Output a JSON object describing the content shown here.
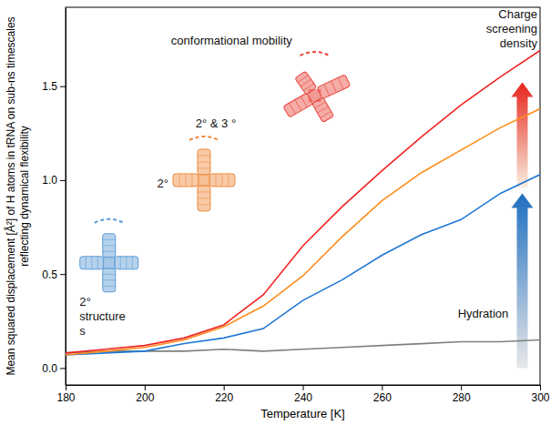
{
  "chart_data": {
    "type": "line",
    "x_label": "Temperature [K]",
    "y_label": "Mean squared displacement [Å²] of H atoms in tRNA on sub-ns timescales reflecting dynamical flexibility",
    "x": [
      180,
      190,
      200,
      210,
      220,
      230,
      240,
      250,
      260,
      270,
      280,
      290,
      300
    ],
    "series": [
      {
        "color": "#808080",
        "values": [
          0.08,
          0.09,
          0.09,
          0.09,
          0.1,
          0.09,
          0.1,
          0.11,
          0.12,
          0.13,
          0.14,
          0.14,
          0.15
        ]
      },
      {
        "color": "#1f77d4",
        "values": [
          0.07,
          0.08,
          0.09,
          0.13,
          0.16,
          0.21,
          0.36,
          0.47,
          0.6,
          0.71,
          0.79,
          0.93,
          1.03
        ]
      },
      {
        "color": "#ff8c1a",
        "values": [
          0.07,
          0.09,
          0.11,
          0.15,
          0.22,
          0.33,
          0.49,
          0.7,
          0.89,
          1.04,
          1.16,
          1.28,
          1.38
        ]
      },
      {
        "color": "#f02424",
        "values": [
          0.08,
          0.1,
          0.12,
          0.16,
          0.23,
          0.39,
          0.65,
          0.86,
          1.05,
          1.23,
          1.4,
          1.55,
          1.69
        ]
      }
    ],
    "xlim": [
      180,
      300
    ],
    "xticks": [
      180,
      200,
      220,
      240,
      260,
      280,
      300
    ],
    "ylim": [
      -0.09,
      1.92
    ],
    "yticks": [
      {
        "value": 0,
        "label": "0.0"
      },
      0.5,
      {
        "value": 1,
        "label": "1.0"
      },
      1.5
    ],
    "grid": false,
    "annotations": [
      {
        "text": [
          "conformational mobility"
        ]
      },
      {
        "text": [
          "Charge",
          "screening",
          "density"
        ]
      },
      {
        "text": [
          "2° & 3 °"
        ]
      },
      {
        "text": [
          "2°"
        ]
      },
      {
        "text": [
          "Hydration"
        ]
      },
      {
        "text": [
          "2°",
          "structure",
          "s"
        ]
      }
    ]
  }
}
